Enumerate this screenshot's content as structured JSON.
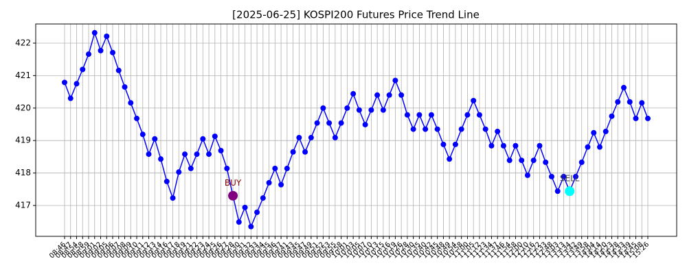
{
  "chart_data": {
    "type": "line",
    "title": "[2025-06-25] KOSPI200 Futures Price Trend Line",
    "categories": [
      "08:46",
      "08:47",
      "08:54",
      "08:58",
      "08:59",
      "09:01",
      "09:02",
      "09:05",
      "09:06",
      "09:07",
      "09:08",
      "09:09",
      "09:10",
      "09:11",
      "09:12",
      "09:13",
      "09:14",
      "09:16",
      "09:17",
      "09:18",
      "09:19",
      "09:21",
      "09:22",
      "09:23",
      "09:24",
      "09:25",
      "09:26",
      "09:27",
      "09:28",
      "09:30",
      "09:31",
      "09:32",
      "09:33",
      "09:34",
      "09:35",
      "09:36",
      "09:37",
      "09:41",
      "09:43",
      "09:45",
      "09:47",
      "09:49",
      "09:51",
      "09:52",
      "09:53",
      "09:55",
      "09:58",
      "10:01",
      "10:03",
      "10:05",
      "10:07",
      "10:10",
      "10:13",
      "10:15",
      "10:16",
      "10:19",
      "10:26",
      "10:28",
      "10:30",
      "10:35",
      "10:40",
      "10:42",
      "10:45",
      "10:48",
      "10:49",
      "10:54",
      "10:58",
      "11:00",
      "11:05",
      "11:12",
      "11:23",
      "11:34",
      "11:37",
      "11:46",
      "11:54",
      "11:58",
      "12:00",
      "12:10",
      "12:16",
      "12:22",
      "12:33",
      "12:48",
      "13:03",
      "13:13",
      "13:34",
      "13:42",
      "13:49",
      "13:58",
      "14:04",
      "14:14",
      "14:20",
      "14:23",
      "14:28",
      "14:33",
      "14:39",
      "14:45",
      "15:08",
      "15:26"
    ],
    "values": [
      420.79,
      420.3,
      420.75,
      421.19,
      421.66,
      422.32,
      421.77,
      422.21,
      421.71,
      421.16,
      420.65,
      420.16,
      419.68,
      419.19,
      418.58,
      419.05,
      418.43,
      417.74,
      417.23,
      418.03,
      418.58,
      418.14,
      418.58,
      419.05,
      418.58,
      419.13,
      418.69,
      418.14,
      417.3,
      416.49,
      416.94,
      416.35,
      416.79,
      417.23,
      417.7,
      418.14,
      417.64,
      418.14,
      418.65,
      419.09,
      418.65,
      419.09,
      419.54,
      420.0,
      419.54,
      419.09,
      419.54,
      420.0,
      420.44,
      419.94,
      419.49,
      419.94,
      420.4,
      419.94,
      420.4,
      420.85,
      420.4,
      419.79,
      419.35,
      419.79,
      419.35,
      419.79,
      419.35,
      418.88,
      418.43,
      418.88,
      419.35,
      419.79,
      420.23,
      419.79,
      419.35,
      418.84,
      419.28,
      418.84,
      418.39,
      418.84,
      418.39,
      417.93,
      418.39,
      418.84,
      418.33,
      417.89,
      417.44,
      417.89,
      417.44,
      417.89,
      418.33,
      418.8,
      419.24,
      418.8,
      419.28,
      419.75,
      420.19,
      420.63,
      420.19,
      419.68,
      420.16,
      419.68
    ],
    "color": "#0000ff",
    "ylim": [
      416.05,
      422.59
    ],
    "yticks": [
      417,
      418,
      419,
      420,
      421,
      422
    ],
    "grid": true,
    "annotations": [
      {
        "text": "BUY",
        "x": "09:28",
        "y": 417.3,
        "color": "#800080",
        "text_color": "#8b0000"
      },
      {
        "text": "SELL",
        "x": "13:34",
        "y": 417.44,
        "color": "#00ffff",
        "text_color": "#444444"
      }
    ]
  }
}
